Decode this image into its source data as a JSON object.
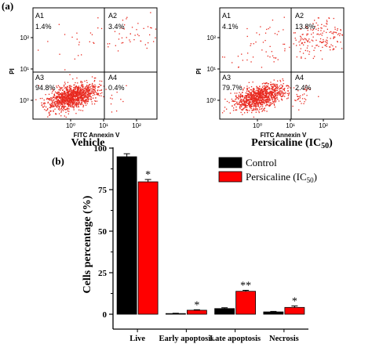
{
  "figure": {
    "panel_a_label": "(a)",
    "panel_b_label": "(b)",
    "flow_plots": [
      {
        "caption": "Vehicle",
        "caption_sub": "",
        "xlabel": "FITC Annexin V",
        "ylabel": "PI",
        "quadrants": [
          {
            "id": "A1",
            "pct": "1.4%"
          },
          {
            "id": "A2",
            "pct": "3.4%"
          },
          {
            "id": "A3",
            "pct": "94.8%"
          },
          {
            "id": "A4",
            "pct": "0.4%"
          }
        ]
      },
      {
        "caption": "Persicaline (IC",
        "caption_sub": "50",
        "caption_end": ")",
        "xlabel": "FITC Annexin V",
        "ylabel": "PI",
        "quadrants": [
          {
            "id": "A1",
            "pct": "4.1%"
          },
          {
            "id": "A2",
            "pct": "13.8%"
          },
          {
            "id": "A3",
            "pct": "79.7%"
          },
          {
            "id": "A4",
            "pct": "2.4%"
          }
        ]
      }
    ],
    "flow_axis_ticks": {
      "x": [
        "10⁰",
        "10¹",
        "10²"
      ],
      "y": [
        "10⁰",
        "10¹",
        "10²"
      ]
    },
    "colors": {
      "control": "#000000",
      "persicaline": "#ff0000",
      "dots": "#e8291f"
    }
  },
  "chart_data": {
    "type": "bar",
    "ylabel": "Cells percentage (%)",
    "ylim": [
      0,
      100
    ],
    "yticks": [
      "0",
      "25",
      "50",
      "75",
      "100"
    ],
    "categories": [
      "Live",
      "Early apoptosis",
      "Late apoptosis",
      "Necrosis"
    ],
    "series": [
      {
        "name": "Control",
        "values": [
          94.8,
          0.4,
          3.4,
          1.4
        ],
        "errors": [
          1.8,
          0.2,
          0.5,
          0.3
        ],
        "sig": [
          "",
          "",
          "",
          ""
        ]
      },
      {
        "name": "Persicaline (IC",
        "name_sub": "50",
        "name_end": ")",
        "values": [
          79.7,
          2.4,
          13.8,
          4.1
        ],
        "errors": [
          1.4,
          0.3,
          0.6,
          0.9
        ],
        "sig": [
          "*",
          "*",
          "**",
          "*"
        ]
      }
    ],
    "legend_position": "top-right"
  }
}
